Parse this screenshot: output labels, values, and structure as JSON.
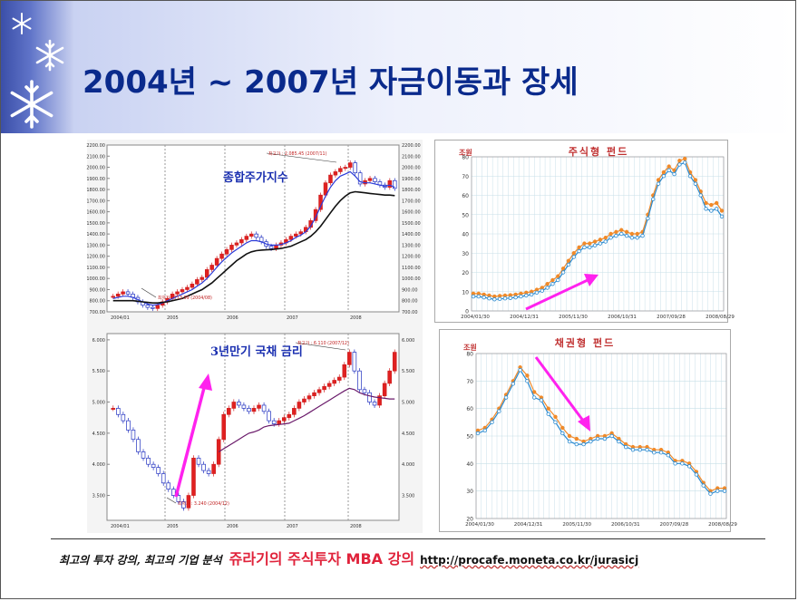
{
  "slide": {
    "title": "2004년 ~ 2007년 자금이동과 장세",
    "footer": {
      "tagline": "최고의 투자 강의, 최고의 기업 분석",
      "brand": "쥬라기의 주식투자 MBA 강의",
      "url": "http://procafe.moneta.co.kr/jurasicj"
    }
  },
  "chart_data": [
    {
      "type": "candlestick",
      "title": "종합주가지수",
      "x_ticks": [
        "2004/01",
        "2005",
        "2006",
        "2007",
        "2008"
      ],
      "y_ticks": [
        "2200.00",
        "2100.00",
        "2000.00",
        "1900.00",
        "1800.00",
        "1700.00",
        "1600.00",
        "1500.00",
        "1400.00",
        "1300.00",
        "1200.00",
        "1100.00",
        "1000.00",
        "900.00",
        "800.00",
        "700.00"
      ],
      "ylim": [
        700,
        2200
      ],
      "annotations": [
        {
          "label": "최고가 : 2,085.45 (2007/11)"
        },
        {
          "label": "최저가 : 713.99 (2004/08)"
        }
      ],
      "series": [
        {
          "values": [
            840,
            860,
            880,
            860,
            830,
            790,
            760,
            740,
            730,
            760,
            790,
            820,
            860,
            880,
            900,
            920,
            950,
            990,
            1010,
            1080,
            1120,
            1180,
            1220,
            1260,
            1300,
            1320,
            1350,
            1380,
            1400,
            1370,
            1330,
            1290,
            1270,
            1300,
            1320,
            1350,
            1380,
            1400,
            1420,
            1460,
            1520,
            1620,
            1750,
            1860,
            1930,
            1960,
            1990,
            2000,
            2040,
            1950,
            1850,
            1880,
            1900,
            1870,
            1840,
            1820,
            1880,
            1810
          ]
        },
        {
          "values": [
            820,
            830,
            840,
            840,
            830,
            810,
            790,
            770,
            760,
            765,
            780,
            800,
            820,
            840,
            860,
            880,
            900,
            930,
            960,
            1000,
            1050,
            1100,
            1150,
            1190,
            1230,
            1260,
            1290,
            1320,
            1340,
            1340,
            1330,
            1310,
            1300,
            1300,
            1305,
            1320,
            1340,
            1370,
            1390,
            1420,
            1470,
            1550,
            1650,
            1740,
            1820,
            1880,
            1920,
            1940,
            1960,
            1920,
            1870,
            1860,
            1860,
            1850,
            1840,
            1830,
            1840,
            1820
          ]
        },
        {
          "values": [
            800,
            800,
            800,
            800,
            800,
            795,
            790,
            785,
            780,
            780,
            785,
            790,
            800,
            810,
            820,
            840,
            860,
            880,
            900,
            930,
            960,
            1000,
            1040,
            1080,
            1120,
            1160,
            1190,
            1220,
            1240,
            1250,
            1255,
            1258,
            1260,
            1265,
            1270,
            1280,
            1290,
            1310,
            1330,
            1350,
            1380,
            1420,
            1470,
            1530,
            1590,
            1650,
            1700,
            1740,
            1770,
            1780,
            1775,
            1770,
            1765,
            1760,
            1755,
            1750,
            1750,
            1745
          ]
        }
      ]
    },
    {
      "type": "candlestick",
      "title": "3년만기 국채 금리",
      "x_ticks": [
        "2004/01",
        "2005",
        "2006",
        "2007",
        "2008"
      ],
      "y_ticks": [
        "6.000",
        "5.500",
        "5.000",
        "4.500",
        "4.000",
        "3.500"
      ],
      "ylim": [
        3.1,
        6.1
      ],
      "annotations": [
        {
          "label": "최고가 : 6.110 (2007/12)"
        },
        {
          "label": "최저가 : 3.240 (2004/12)"
        }
      ],
      "series": [
        {
          "values": [
            4.9,
            4.8,
            4.7,
            4.55,
            4.4,
            4.2,
            4.1,
            4.0,
            3.95,
            3.85,
            3.7,
            3.6,
            3.5,
            3.4,
            3.3,
            3.5,
            4.1,
            4.0,
            3.9,
            3.85,
            4.0,
            4.4,
            4.8,
            4.9,
            5.0,
            4.95,
            4.9,
            4.85,
            4.9,
            4.95,
            4.85,
            4.7,
            4.65,
            4.7,
            4.75,
            4.8,
            4.9,
            5.0,
            5.05,
            5.1,
            5.15,
            5.2,
            5.25,
            5.3,
            5.35,
            5.4,
            5.6,
            5.8,
            5.5,
            5.2,
            5.15,
            5.0,
            4.95,
            5.1,
            5.3,
            5.5,
            5.8
          ]
        },
        {
          "values": [
            null,
            null,
            null,
            null,
            null,
            null,
            null,
            null,
            null,
            null,
            null,
            null,
            null,
            null,
            null,
            null,
            null,
            null,
            null,
            null,
            null,
            4.2,
            4.25,
            4.3,
            4.35,
            4.4,
            4.45,
            4.5,
            4.52,
            4.55,
            4.6,
            4.62,
            4.63,
            4.64,
            4.65,
            4.66,
            4.7,
            4.74,
            4.78,
            4.83,
            4.88,
            4.93,
            4.98,
            5.03,
            5.08,
            5.13,
            5.18,
            5.22,
            5.2,
            5.15,
            5.12,
            5.1,
            5.08,
            5.07,
            5.06,
            5.05,
            5.05
          ]
        }
      ]
    },
    {
      "type": "line",
      "title": "주식형 펀드",
      "ylabel": "조원",
      "x_ticks": [
        "2004/01/30",
        "2004/12/31",
        "2005/11/30",
        "2006/10/31",
        "2007/09/28",
        "2008/08/29"
      ],
      "ylim": [
        0,
        80
      ],
      "y_ticks": [
        0,
        10,
        20,
        30,
        40,
        50,
        60,
        70,
        80
      ],
      "series": [
        {
          "color": "#f08a2a",
          "values": [
            9,
            9,
            8.5,
            8,
            7.5,
            7.8,
            8,
            8.2,
            8.5,
            9,
            9.5,
            10,
            11,
            12,
            14,
            16,
            18,
            22,
            26,
            30,
            33,
            35,
            35,
            36,
            37,
            38,
            40,
            41,
            42,
            41,
            40,
            40,
            41,
            50,
            60,
            68,
            72,
            75,
            73,
            78,
            79,
            72,
            68,
            62,
            56,
            55,
            56,
            52
          ]
        },
        {
          "color": "#2a8ad0",
          "values": [
            7.5,
            7.5,
            7,
            6.5,
            6,
            6.2,
            6.5,
            6.7,
            7,
            7.5,
            8,
            8.5,
            9.5,
            10.5,
            12,
            14,
            16,
            20,
            24,
            28,
            31,
            33,
            33,
            34,
            35,
            36,
            38,
            39,
            40,
            39,
            38,
            38,
            39,
            48,
            58,
            66,
            70,
            73,
            71,
            76,
            77,
            70,
            66,
            60,
            53,
            52,
            53,
            49
          ]
        }
      ]
    },
    {
      "type": "line",
      "title": "채권형 펀드",
      "ylabel": "조원",
      "x_ticks": [
        "2004/01/30",
        "2004/12/31",
        "2005/11/30",
        "2006/10/31",
        "2007/09/28",
        "2008/08/29"
      ],
      "ylim": [
        20,
        80
      ],
      "y_ticks": [
        20,
        30,
        40,
        50,
        60,
        70,
        80
      ],
      "series": [
        {
          "color": "#f08a2a",
          "values": [
            52,
            53,
            56,
            60,
            65,
            70,
            75,
            72,
            66,
            64,
            60,
            57,
            53,
            50,
            49,
            48,
            49,
            50,
            50,
            51,
            49,
            47,
            46,
            46,
            46,
            45,
            45,
            44,
            41,
            41,
            40,
            37,
            33,
            30,
            31,
            31
          ]
        },
        {
          "color": "#2a8ad0",
          "values": [
            51,
            52,
            55,
            59,
            64,
            69,
            74,
            70,
            64,
            63,
            58,
            55,
            51,
            48,
            47,
            47,
            48,
            49,
            49,
            50,
            48,
            46,
            45,
            45,
            45,
            44,
            44,
            43,
            40,
            40,
            39,
            36,
            32,
            29,
            30,
            30
          ]
        }
      ]
    }
  ]
}
